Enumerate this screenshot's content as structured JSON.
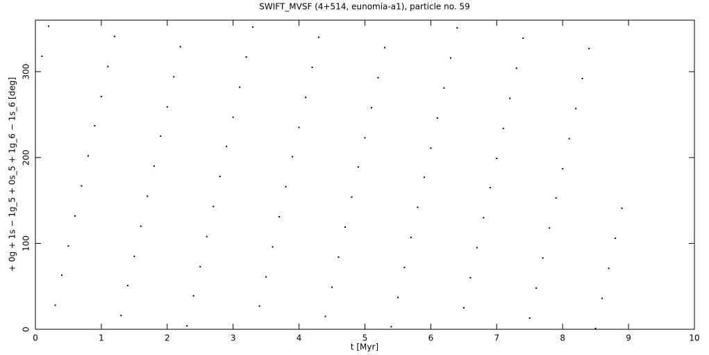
{
  "chart_data": {
    "type": "scatter",
    "title": "SWIFT_MVSF (4+514, eunomia-a1), particle no. 59",
    "xlabel": "t [Myr]",
    "ylabel": "+ 0g + 1s − 1g_5 + 0s_5 + 1g_6 − 1s_6 [deg]",
    "color": "#000000",
    "x": [
      0.1,
      0.2,
      0.3,
      0.4,
      0.5,
      0.6,
      0.7,
      0.8,
      0.9,
      1.0,
      1.1,
      1.2,
      1.3,
      1.4,
      1.5,
      1.6,
      1.7,
      1.8,
      1.9,
      2.0,
      2.1,
      2.2,
      2.3,
      2.4,
      2.5,
      2.6,
      2.7,
      2.8,
      2.9,
      3.0,
      3.1,
      3.2,
      3.3,
      3.4,
      3.5,
      3.6,
      3.7,
      3.8,
      3.9,
      4.0,
      4.1,
      4.2,
      4.3,
      4.4,
      4.5,
      4.6,
      4.7,
      4.8,
      4.9,
      5.0,
      5.1,
      5.2,
      5.3,
      5.4,
      5.5,
      5.6,
      5.7,
      5.8,
      5.9,
      6.0,
      6.1,
      6.2,
      6.3,
      6.4,
      6.5,
      6.6,
      6.7,
      6.8,
      6.9,
      7.0,
      7.1,
      7.2,
      7.3,
      7.4,
      7.5,
      7.6,
      7.7,
      7.8,
      7.9,
      8.0,
      8.1,
      8.2,
      8.3,
      8.4,
      8.5,
      8.6,
      8.7,
      8.8,
      8.9
    ],
    "values": [
      318,
      353,
      28,
      63,
      97,
      132,
      167,
      202,
      237,
      271,
      306,
      341,
      16,
      51,
      85,
      120,
      155,
      190,
      225,
      259,
      294,
      329,
      4,
      39,
      73,
      108,
      143,
      178,
      213,
      247,
      282,
      317,
      352,
      27,
      61,
      96,
      131,
      166,
      201,
      235,
      270,
      305,
      340,
      15,
      49,
      84,
      119,
      154,
      189,
      223,
      258,
      293,
      328,
      3,
      37,
      72,
      107,
      142,
      177,
      211,
      246,
      281,
      316,
      351,
      25,
      60,
      95,
      130,
      165,
      199,
      234,
      269,
      304,
      339,
      13,
      48,
      83,
      118,
      153,
      187,
      222,
      257,
      292,
      327,
      1,
      36,
      71,
      106,
      141
    ],
    "xlim": [
      0,
      10
    ],
    "ylim": [
      0,
      360
    ],
    "xticks": [
      0,
      1,
      2,
      3,
      4,
      5,
      6,
      7,
      8,
      9,
      10
    ],
    "yticks": [
      0,
      100,
      200,
      300
    ]
  }
}
